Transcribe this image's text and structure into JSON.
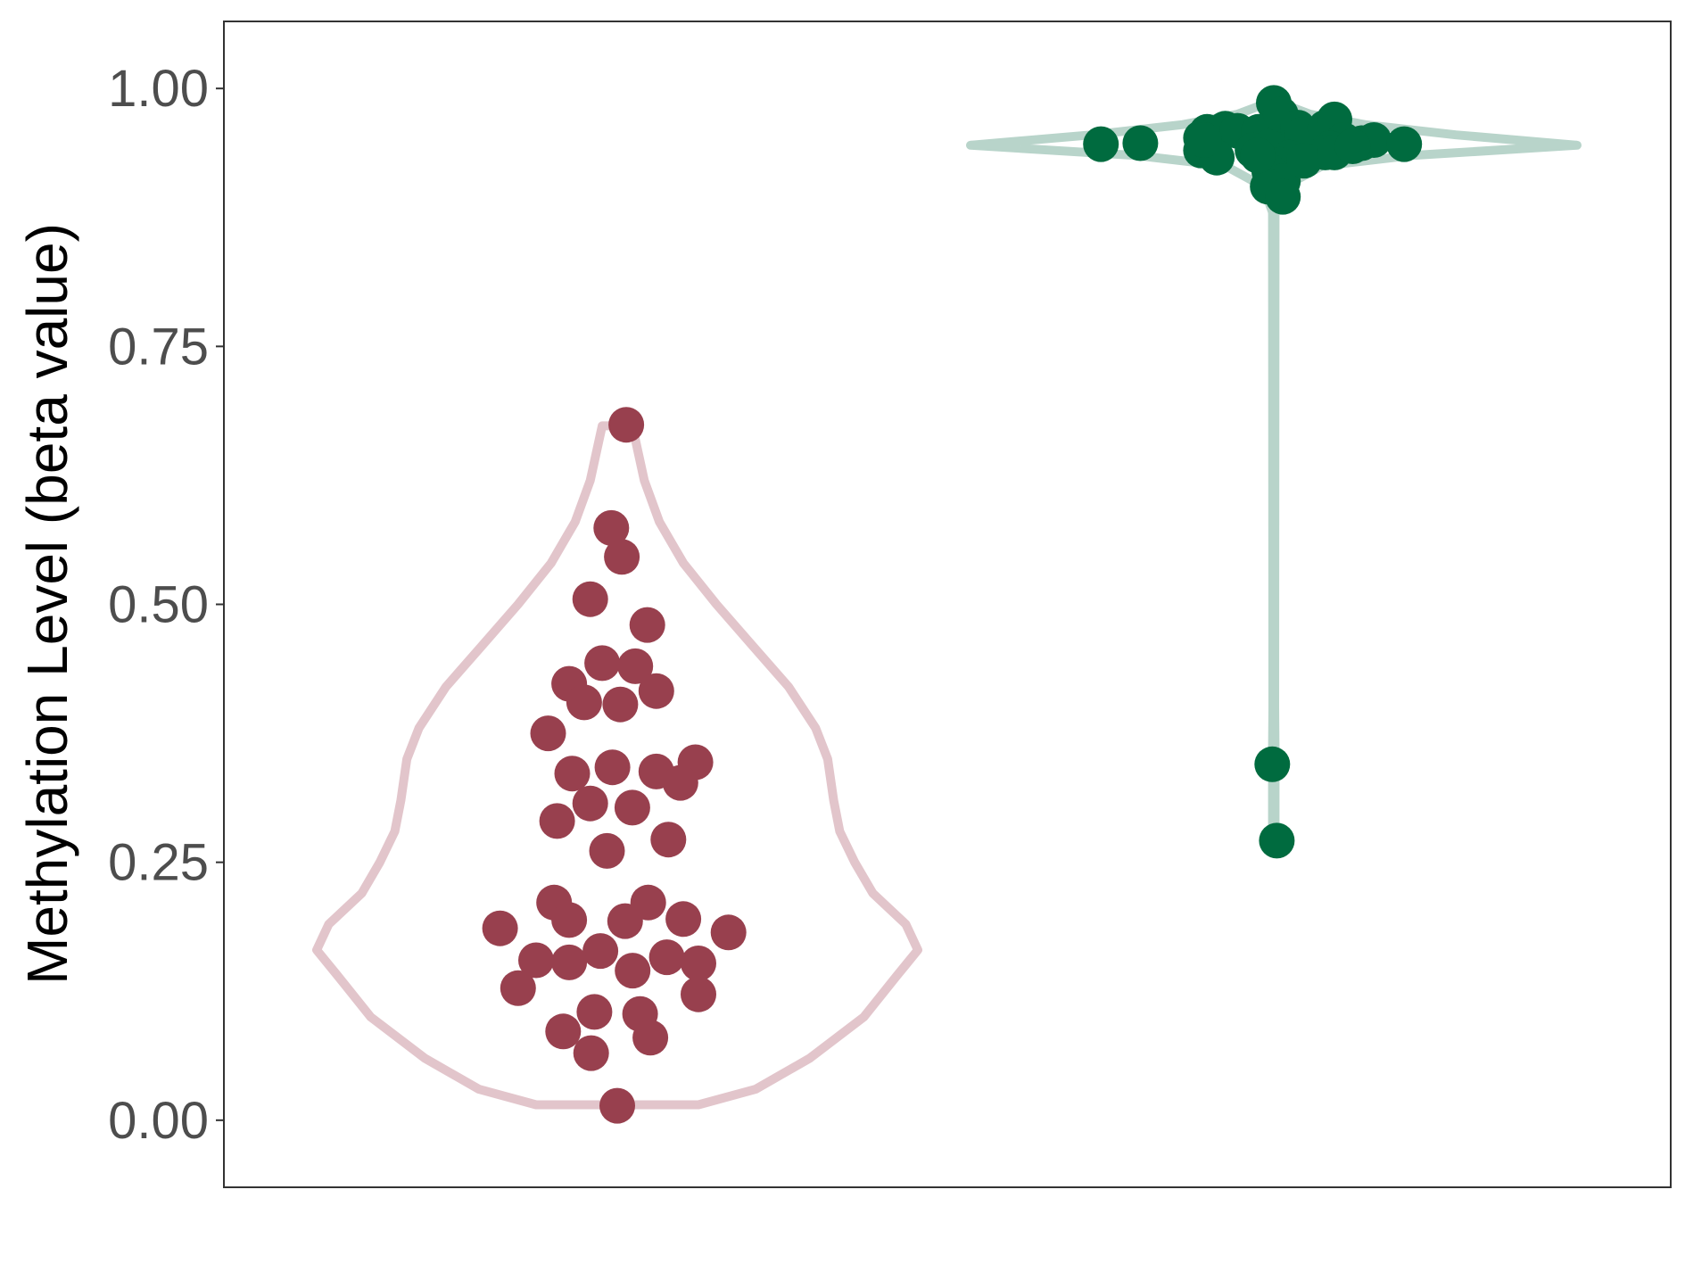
{
  "chart_data": {
    "type": "violin",
    "ylabel": "Methylation Level (beta value)",
    "xlabel": "",
    "ylim": [
      -0.065,
      1.065
    ],
    "yticks": [
      {
        "value": 0.0,
        "label": "0.00"
      },
      {
        "value": 0.25,
        "label": "0.25"
      },
      {
        "value": 0.5,
        "label": "0.50"
      },
      {
        "value": 0.75,
        "label": "0.75"
      },
      {
        "value": 1.0,
        "label": "1.00"
      }
    ],
    "grid": false,
    "legend": "none",
    "groups": [
      {
        "violin_color": "#e2c5cb",
        "point_color": "#98404e",
        "range": [
          0.015,
          0.673
        ],
        "density_profile": [
          [
            0.015,
            0.27
          ],
          [
            0.03,
            0.46
          ],
          [
            0.06,
            0.64
          ],
          [
            0.1,
            0.82
          ],
          [
            0.14,
            0.93
          ],
          [
            0.165,
            1.0
          ],
          [
            0.19,
            0.96
          ],
          [
            0.22,
            0.85
          ],
          [
            0.25,
            0.79
          ],
          [
            0.28,
            0.74
          ],
          [
            0.31,
            0.72
          ],
          [
            0.35,
            0.7
          ],
          [
            0.38,
            0.66
          ],
          [
            0.42,
            0.57
          ],
          [
            0.46,
            0.45
          ],
          [
            0.5,
            0.33
          ],
          [
            0.54,
            0.22
          ],
          [
            0.58,
            0.14
          ],
          [
            0.62,
            0.09
          ],
          [
            0.66,
            0.06
          ],
          [
            0.673,
            0.05
          ]
        ],
        "points": [
          {
            "offset": 0.03,
            "y": 0.674
          },
          {
            "offset": -0.02,
            "y": 0.574
          },
          {
            "offset": 0.015,
            "y": 0.546
          },
          {
            "offset": -0.09,
            "y": 0.505
          },
          {
            "offset": 0.1,
            "y": 0.48
          },
          {
            "offset": -0.05,
            "y": 0.443
          },
          {
            "offset": 0.06,
            "y": 0.44
          },
          {
            "offset": -0.16,
            "y": 0.423
          },
          {
            "offset": 0.13,
            "y": 0.416
          },
          {
            "offset": -0.11,
            "y": 0.405
          },
          {
            "offset": 0.01,
            "y": 0.403
          },
          {
            "offset": -0.23,
            "y": 0.375
          },
          {
            "offset": 0.26,
            "y": 0.347
          },
          {
            "offset": -0.016,
            "y": 0.342
          },
          {
            "offset": 0.13,
            "y": 0.338
          },
          {
            "offset": -0.15,
            "y": 0.336
          },
          {
            "offset": 0.21,
            "y": 0.327
          },
          {
            "offset": -0.09,
            "y": 0.307
          },
          {
            "offset": 0.05,
            "y": 0.303
          },
          {
            "offset": -0.2,
            "y": 0.29
          },
          {
            "offset": 0.17,
            "y": 0.272
          },
          {
            "offset": -0.034,
            "y": 0.261
          },
          {
            "offset": -0.21,
            "y": 0.211
          },
          {
            "offset": 0.103,
            "y": 0.211
          },
          {
            "offset": 0.22,
            "y": 0.195
          },
          {
            "offset": -0.16,
            "y": 0.194
          },
          {
            "offset": 0.026,
            "y": 0.193
          },
          {
            "offset": -0.39,
            "y": 0.186
          },
          {
            "offset": 0.37,
            "y": 0.182
          },
          {
            "offset": -0.056,
            "y": 0.164
          },
          {
            "offset": 0.165,
            "y": 0.158
          },
          {
            "offset": -0.27,
            "y": 0.155
          },
          {
            "offset": -0.16,
            "y": 0.153
          },
          {
            "offset": 0.27,
            "y": 0.152
          },
          {
            "offset": 0.051,
            "y": 0.145
          },
          {
            "offset": -0.33,
            "y": 0.128
          },
          {
            "offset": 0.27,
            "y": 0.122
          },
          {
            "offset": -0.076,
            "y": 0.105
          },
          {
            "offset": 0.076,
            "y": 0.103
          },
          {
            "offset": -0.18,
            "y": 0.086
          },
          {
            "offset": 0.11,
            "y": 0.08
          },
          {
            "offset": -0.087,
            "y": 0.065
          },
          {
            "offset": 0.0,
            "y": 0.014
          }
        ]
      },
      {
        "violin_color": "#b8d4ca",
        "point_color": "#006b3f",
        "range": [
          0.27,
          0.99
        ],
        "density_profile": [
          [
            0.27,
            0.025
          ],
          [
            0.275,
            0.01
          ],
          [
            0.285,
            0.004
          ],
          [
            0.33,
            0.004
          ],
          [
            0.345,
            0.022
          ],
          [
            0.36,
            0.004
          ],
          [
            0.4,
            0.003
          ],
          [
            0.88,
            0.004
          ],
          [
            0.905,
            0.035
          ],
          [
            0.925,
            0.16
          ],
          [
            0.935,
            0.45
          ],
          [
            0.945,
            1.0
          ],
          [
            0.955,
            0.6
          ],
          [
            0.965,
            0.3
          ],
          [
            0.975,
            0.12
          ],
          [
            0.985,
            0.03
          ],
          [
            0.99,
            0.02
          ]
        ],
        "points": [
          {
            "offset": -0.16,
            "y": 0.961
          },
          {
            "offset": -0.22,
            "y": 0.958
          },
          {
            "offset": -0.24,
            "y": 0.952
          },
          {
            "offset": -0.24,
            "y": 0.94
          },
          {
            "offset": -0.12,
            "y": 0.959
          },
          {
            "offset": -0.05,
            "y": 0.958
          },
          {
            "offset": -0.07,
            "y": 0.94
          },
          {
            "offset": -0.01,
            "y": 0.944
          },
          {
            "offset": 0.0,
            "y": 0.986
          },
          {
            "offset": 0.023,
            "y": 0.975
          },
          {
            "offset": 0.08,
            "y": 0.962
          },
          {
            "offset": 0.093,
            "y": 0.955
          },
          {
            "offset": 0.17,
            "y": 0.962
          },
          {
            "offset": 0.2,
            "y": 0.97
          },
          {
            "offset": 0.23,
            "y": 0.95
          },
          {
            "offset": 0.29,
            "y": 0.947
          },
          {
            "offset": 0.33,
            "y": 0.95
          },
          {
            "offset": 0.185,
            "y": 0.942
          },
          {
            "offset": 0.17,
            "y": 0.938
          },
          {
            "offset": 0.05,
            "y": 0.933
          },
          {
            "offset": -0.188,
            "y": 0.933
          },
          {
            "offset": 0.02,
            "y": 0.926
          },
          {
            "offset": -0.015,
            "y": 0.92
          },
          {
            "offset": 0.03,
            "y": 0.91
          },
          {
            "offset": -0.02,
            "y": 0.905
          },
          {
            "offset": 0.03,
            "y": 0.895
          },
          {
            "offset": 0.1,
            "y": 0.93
          },
          {
            "offset": -0.053,
            "y": 0.935
          },
          {
            "offset": 0.2,
            "y": 0.938
          },
          {
            "offset": -0.23,
            "y": 0.95
          },
          {
            "offset": 0.26,
            "y": 0.944
          },
          {
            "offset": -0.57,
            "y": 0.946
          },
          {
            "offset": -0.44,
            "y": 0.947
          },
          {
            "offset": 0.43,
            "y": 0.946
          },
          {
            "offset": -0.005,
            "y": 0.345
          },
          {
            "offset": 0.01,
            "y": 0.271
          }
        ]
      }
    ]
  }
}
